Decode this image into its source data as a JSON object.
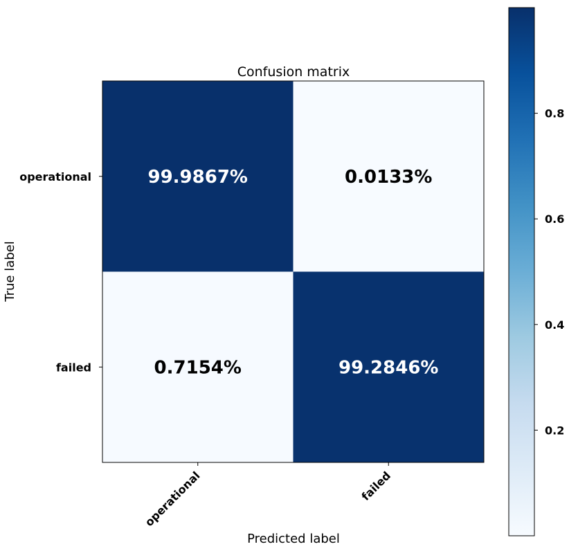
{
  "chart_data": {
    "type": "heatmap",
    "title": "Confusion matrix",
    "xlabel": "Predicted label",
    "ylabel": "True label",
    "row_labels": [
      "operational",
      "failed"
    ],
    "col_labels": [
      "operational",
      "failed"
    ],
    "values": [
      [
        0.999867,
        0.000133
      ],
      [
        0.007154,
        0.992846
      ]
    ],
    "cell_labels": [
      [
        "99.9867%",
        "0.0133%"
      ],
      [
        "0.7154%",
        "99.2846%"
      ]
    ],
    "colormap": "Blues",
    "colors": {
      "low": "#f7fbff",
      "high": "#08306b"
    },
    "colorbar": {
      "range": [
        0,
        1
      ],
      "ticks": [
        0.2,
        0.4,
        0.6,
        0.8
      ],
      "tick_labels": [
        "0.2",
        "0.4",
        "0.6",
        "0.8"
      ]
    },
    "grid": false
  }
}
